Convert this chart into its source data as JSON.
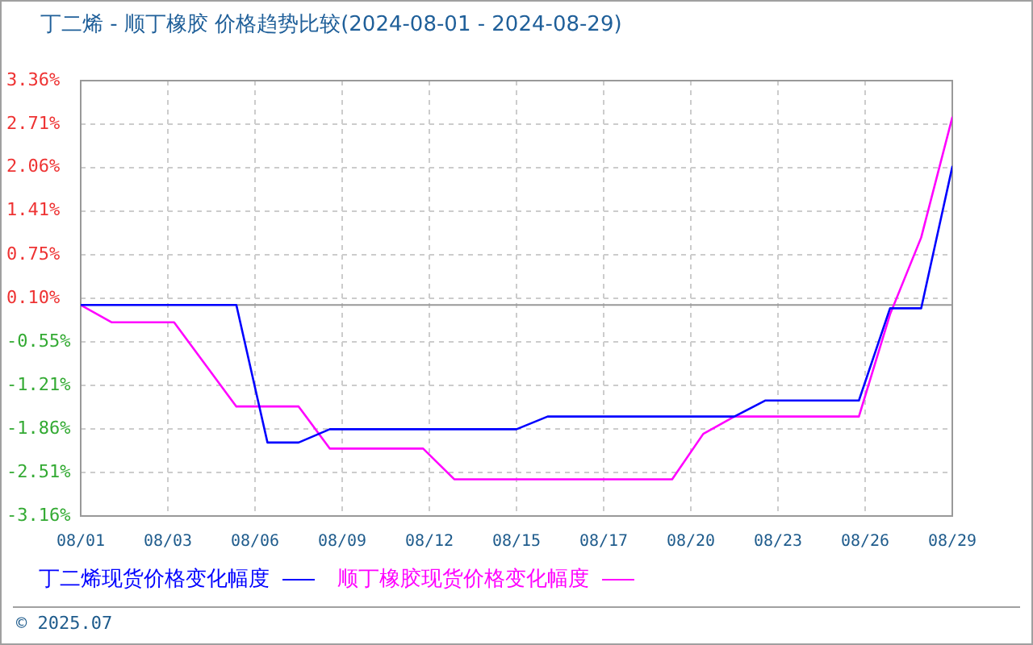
{
  "chart_data": {
    "type": "line",
    "title": "丁二烯 - 顺丁橡胶 价格趋势比较(2024-08-01 - 2024-08-29)",
    "x": [
      "2024-08-01",
      "2024-08-02",
      "2024-08-03",
      "2024-08-04",
      "2024-08-05",
      "2024-08-06",
      "2024-08-07",
      "2024-08-08",
      "2024-08-09",
      "2024-08-10",
      "2024-08-11",
      "2024-08-12",
      "2024-08-13",
      "2024-08-14",
      "2024-08-15",
      "2024-08-16",
      "2024-08-17",
      "2024-08-18",
      "2024-08-19",
      "2024-08-20",
      "2024-08-21",
      "2024-08-22",
      "2024-08-23",
      "2024-08-24",
      "2024-08-25",
      "2024-08-26",
      "2024-08-27",
      "2024-08-28",
      "2024-08-29"
    ],
    "series": [
      {
        "name": "丁二烯现货价格变化幅度",
        "color": "#0000ff",
        "values": [
          0,
          0,
          0,
          0,
          0,
          0,
          -2.06,
          -2.06,
          -1.86,
          -1.86,
          -1.86,
          -1.86,
          -1.86,
          -1.86,
          -1.86,
          -1.67,
          -1.67,
          -1.67,
          -1.67,
          -1.67,
          -1.67,
          -1.67,
          -1.43,
          -1.43,
          -1.43,
          -1.43,
          -0.05,
          -0.05,
          2.07
        ]
      },
      {
        "name": "顺丁橡胶现货价格变化幅度",
        "color": "#ff00ff",
        "values": [
          0,
          -0.26,
          -0.26,
          -0.26,
          -0.89,
          -1.52,
          -1.52,
          -1.52,
          -2.15,
          -2.15,
          -2.15,
          -2.15,
          -2.61,
          -2.61,
          -2.61,
          -2.61,
          -2.61,
          -2.61,
          -2.61,
          -2.61,
          -1.93,
          -1.67,
          -1.67,
          -1.67,
          -1.67,
          -1.67,
          -0.14,
          1.01,
          2.81
        ]
      }
    ],
    "xlim": [
      "2024-08-01",
      "2024-08-29"
    ],
    "xticks": [
      {
        "value": "2024-08-01",
        "label": "08/01"
      },
      {
        "value": "2024-08-03T19:12",
        "label": "08/03"
      },
      {
        "value": "2024-08-06T14:24",
        "label": "08/06"
      },
      {
        "value": "2024-08-09T09:36",
        "label": "08/09"
      },
      {
        "value": "2024-08-12T04:48",
        "label": "08/12"
      },
      {
        "value": "2024-08-15",
        "label": "08/15"
      },
      {
        "value": "2024-08-17T19:12",
        "label": "08/17"
      },
      {
        "value": "2024-08-20T14:24",
        "label": "08/20"
      },
      {
        "value": "2024-08-23T09:36",
        "label": "08/23"
      },
      {
        "value": "2024-08-26T04:48",
        "label": "08/26"
      },
      {
        "value": "2024-08-29",
        "label": "08/29"
      }
    ],
    "ylim": [
      -3.16,
      3.36
    ],
    "yticks": [
      {
        "value": -3.16,
        "label": "-3.16%"
      },
      {
        "value": -2.51,
        "label": "-2.51%"
      },
      {
        "value": -1.86,
        "label": "-1.86%"
      },
      {
        "value": -1.21,
        "label": "-1.21%"
      },
      {
        "value": -0.55,
        "label": "-0.55%"
      },
      {
        "value": 0.1,
        "label": "0.10%"
      },
      {
        "value": 0.75,
        "label": "0.75%"
      },
      {
        "value": 1.41,
        "label": "1.41%"
      },
      {
        "value": 2.06,
        "label": "2.06%"
      },
      {
        "value": 2.71,
        "label": "2.71%"
      },
      {
        "value": 3.36,
        "label": "3.36%"
      }
    ],
    "ref_lines": [
      {
        "axis": "y",
        "value": 0,
        "color": "#999999"
      }
    ],
    "grid": true,
    "legend": "bottom",
    "marker": "none",
    "line_style": "solid",
    "annotations": [
      "© 2025.07"
    ]
  }
}
